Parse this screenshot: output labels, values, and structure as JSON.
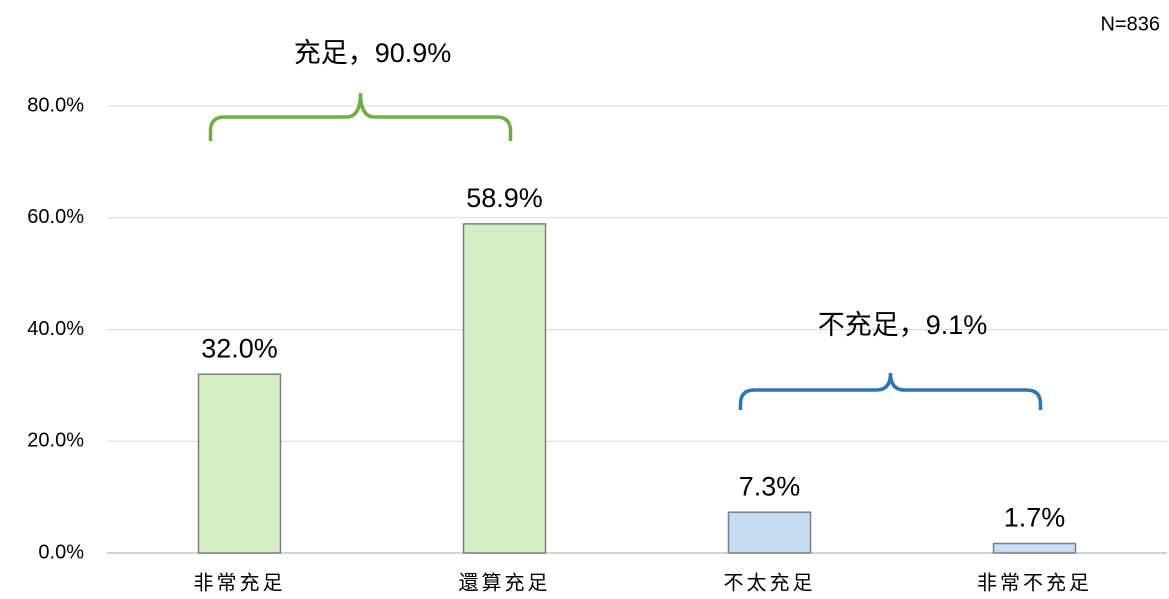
{
  "chart_data": {
    "type": "bar",
    "note": "N=836",
    "categories": [
      "非常充足",
      "還算充足",
      "不太充足",
      "非常不充足"
    ],
    "values": [
      32.0,
      58.9,
      7.3,
      1.7
    ],
    "value_labels": [
      "32.0%",
      "58.9%",
      "7.3%",
      "1.7%"
    ],
    "colors": [
      "#d5edc5",
      "#d5edc5",
      "#c6dcf2",
      "#c6dcf2"
    ],
    "ylim": [
      0,
      80
    ],
    "yticks": [
      {
        "value": 0,
        "label": "0.0%"
      },
      {
        "value": 20,
        "label": "20.0%"
      },
      {
        "value": 40,
        "label": "40.0%"
      },
      {
        "value": 60,
        "label": "60.0%"
      },
      {
        "value": 80,
        "label": "80.0%"
      }
    ],
    "grid": true,
    "annotations": [
      {
        "text": "充足，90.9%",
        "color": "#70ad47"
      },
      {
        "text": "不充足，9.1%",
        "color": "#2e75b6"
      }
    ]
  }
}
